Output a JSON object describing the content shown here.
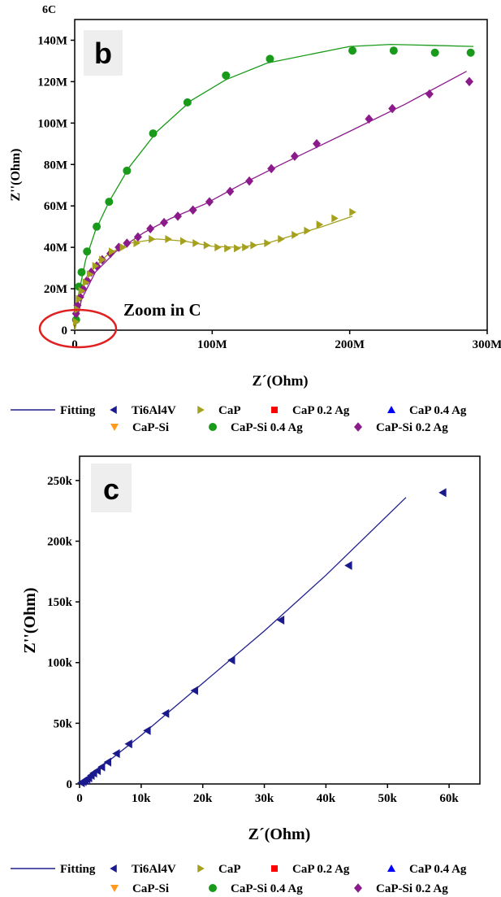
{
  "top_fragment": "6C",
  "colors": {
    "fitting": "#1f1f8f",
    "ti6al4v": "#1a1a8c",
    "cap": "#a5a11e",
    "cap_02ag": "#ff0000",
    "cap_04ag": "#0000ff",
    "cap_si": "#ff9a1f",
    "cap_si_04ag": "#1a9a1a",
    "cap_si_02ag": "#8b1a8b",
    "zoom_circle": "#e02020",
    "panel_label_bg": "#eeeeee"
  },
  "legend": {
    "fitting": "Fitting",
    "ti6al4v": "Ti6Al4V",
    "cap": "CaP",
    "cap_02ag": "CaP 0.2 Ag",
    "cap_04ag": "CaP 0.4 Ag",
    "cap_si": "CaP-Si",
    "cap_si_04ag": "CaP-Si 0.4 Ag",
    "cap_si_02ag": "CaP-Si 0.2 Ag"
  },
  "chart_data": [
    {
      "panel": "b",
      "type": "scatter",
      "xlabel": "Z´(Ohm)",
      "ylabel": "Z''(Ohm)",
      "xlim": [
        0,
        300
      ],
      "ylim": [
        0,
        150
      ],
      "unit_note": "values in M (10^6 Ohm)",
      "x_ticks": [
        0,
        100,
        200,
        300
      ],
      "x_tick_labels": [
        "0",
        "100M",
        "200M",
        "300M"
      ],
      "y_ticks": [
        0,
        20,
        40,
        60,
        80,
        100,
        120,
        140
      ],
      "y_tick_labels": [
        "0",
        "20M",
        "40M",
        "60M",
        "80M",
        "100M",
        "120M",
        "140M"
      ],
      "annotation": "Zoom in C",
      "series": [
        {
          "name": "CaP-Si 0.4 Ag",
          "marker": "circle",
          "points": [
            [
              1,
              5
            ],
            [
              3,
              21
            ],
            [
              5,
              28
            ],
            [
              9,
              38
            ],
            [
              16,
              50
            ],
            [
              25,
              62
            ],
            [
              38,
              77
            ],
            [
              57,
              95
            ],
            [
              82,
              110
            ],
            [
              110,
              123
            ],
            [
              142,
              131
            ],
            [
              202,
              135
            ],
            [
              232,
              135
            ],
            [
              262,
              134
            ],
            [
              288,
              134
            ]
          ],
          "fit": [
            [
              0,
              0
            ],
            [
              3,
              18
            ],
            [
              8,
              34
            ],
            [
              15,
              48
            ],
            [
              25,
              62
            ],
            [
              40,
              79
            ],
            [
              60,
              96
            ],
            [
              85,
              111
            ],
            [
              110,
              121
            ],
            [
              140,
              129
            ],
            [
              200,
              137
            ],
            [
              230,
              138
            ],
            [
              260,
              137.5
            ],
            [
              290,
              137
            ]
          ]
        },
        {
          "name": "CaP-Si 0.2 Ag",
          "marker": "diamond",
          "points": [
            [
              1,
              8
            ],
            [
              2,
              12
            ],
            [
              4,
              16
            ],
            [
              6,
              20
            ],
            [
              9,
              24
            ],
            [
              12,
              28
            ],
            [
              16,
              31
            ],
            [
              20,
              34
            ],
            [
              26,
              37
            ],
            [
              32,
              40
            ],
            [
              38,
              42
            ],
            [
              46,
              45
            ],
            [
              55,
              49
            ],
            [
              65,
              52
            ],
            [
              75,
              55
            ],
            [
              86,
              58
            ],
            [
              98,
              62
            ],
            [
              113,
              67
            ],
            [
              127,
              72
            ],
            [
              143,
              78
            ],
            [
              160,
              84
            ],
            [
              176,
              90
            ],
            [
              214,
              102
            ],
            [
              231,
              107
            ],
            [
              258,
              114
            ],
            [
              287,
              120
            ]
          ],
          "fit": [
            [
              0,
              0
            ],
            [
              5,
              15
            ],
            [
              15,
              28
            ],
            [
              30,
              38
            ],
            [
              50,
              47
            ],
            [
              70,
              54
            ],
            [
              95,
              61
            ],
            [
              120,
              70
            ],
            [
              150,
              80
            ],
            [
              200,
              96
            ],
            [
              240,
              109
            ],
            [
              285,
              125
            ]
          ]
        },
        {
          "name": "CaP",
          "marker": "triangle-right",
          "points": [
            [
              1,
              4
            ],
            [
              2,
              10
            ],
            [
              3,
              15
            ],
            [
              5,
              19
            ],
            [
              8,
              23
            ],
            [
              11,
              27
            ],
            [
              15,
              31
            ],
            [
              20,
              34
            ],
            [
              27,
              38
            ],
            [
              35,
              40
            ],
            [
              45,
              42
            ],
            [
              56,
              44
            ],
            [
              68,
              44
            ],
            [
              79,
              43
            ],
            [
              88,
              42
            ],
            [
              96,
              41
            ],
            [
              104,
              40
            ],
            [
              111,
              39.5
            ],
            [
              118,
              39.5
            ],
            [
              124,
              40
            ],
            [
              130,
              41
            ],
            [
              140,
              42
            ],
            [
              150,
              44
            ],
            [
              160,
              46
            ],
            [
              169,
              48
            ],
            [
              178,
              51
            ],
            [
              189,
              54
            ],
            [
              202,
              57
            ]
          ],
          "fit": [
            [
              0,
              0
            ],
            [
              3,
              15
            ],
            [
              8,
              24
            ],
            [
              15,
              31
            ],
            [
              25,
              37
            ],
            [
              40,
              42
            ],
            [
              60,
              44
            ],
            [
              80,
              43
            ],
            [
              100,
              40.5
            ],
            [
              120,
              40
            ],
            [
              140,
              42
            ],
            [
              160,
              46
            ],
            [
              180,
              50
            ],
            [
              202,
              55
            ]
          ]
        }
      ]
    },
    {
      "panel": "c",
      "type": "scatter",
      "xlabel": "Z´(Ohm)",
      "ylabel": "Z''(Ohm)",
      "xlim": [
        0,
        65
      ],
      "ylim": [
        0,
        270
      ],
      "unit_note": "values in k (10^3 Ohm)",
      "x_ticks": [
        0,
        10,
        20,
        30,
        40,
        50,
        60
      ],
      "x_tick_labels": [
        "0",
        "10k",
        "20k",
        "30k",
        "40k",
        "50k",
        "60k"
      ],
      "y_ticks": [
        0,
        50,
        100,
        150,
        200,
        250
      ],
      "y_tick_labels": [
        "0",
        "50k",
        "100k",
        "150k",
        "200k",
        "250k"
      ],
      "series": [
        {
          "name": "Ti6Al4V",
          "marker": "triangle-left",
          "points": [
            [
              0.3,
              1
            ],
            [
              0.6,
              2
            ],
            [
              0.9,
              3
            ],
            [
              1.2,
              4
            ],
            [
              1.5,
              5
            ],
            [
              1.9,
              7
            ],
            [
              2.3,
              9
            ],
            [
              2.9,
              11
            ],
            [
              3.6,
              14
            ],
            [
              4.6,
              18
            ],
            [
              6,
              25
            ],
            [
              8,
              33
            ],
            [
              11,
              44
            ],
            [
              14,
              58
            ],
            [
              18.7,
              77
            ],
            [
              24.7,
              102
            ],
            [
              32.7,
              135
            ],
            [
              43.7,
              180
            ],
            [
              59,
              240
            ]
          ],
          "fit": [
            [
              0,
              0
            ],
            [
              10,
              40
            ],
            [
              20,
              83
            ],
            [
              30,
              126
            ],
            [
              40,
              172
            ],
            [
              53,
              236
            ]
          ]
        }
      ]
    }
  ]
}
